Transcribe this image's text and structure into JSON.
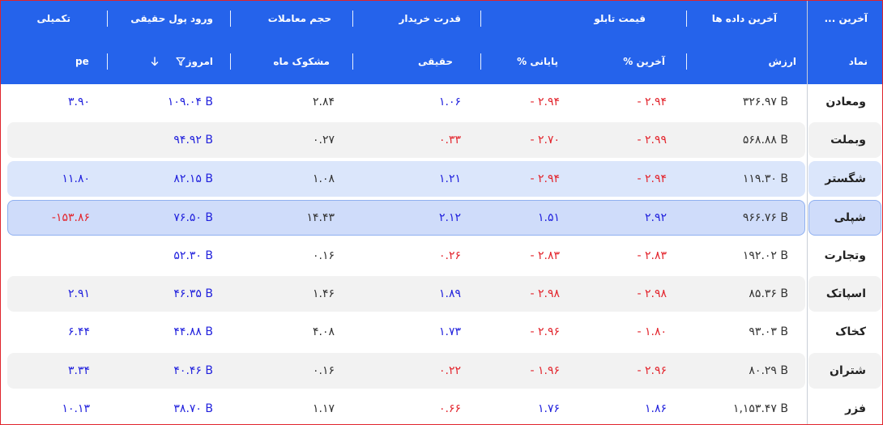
{
  "header": {
    "groups": {
      "latest_more": "آخرین ...",
      "latest_data": "آخرین داده ها",
      "board_price": "قیمت تابلو",
      "buyer_power": "قدرت خریدار",
      "trade_volume": "حجم معاملات",
      "real_money_inflow": "ورود پول حقیقی",
      "supplementary": "تکمیلی"
    },
    "columns": {
      "symbol": "نماد",
      "value": "ارزش",
      "last_pct": "آخرین %",
      "close_pct": "پایانی %",
      "real": "حقیقی",
      "suspicious_month": "مشکوک ماه",
      "today": "امروز",
      "pe": "pe"
    }
  },
  "rows": [
    {
      "symbol": "ومعادن",
      "value": "۳۲۶.۹۷ B",
      "last_pct": "- ۲.۹۴",
      "close_pct": "- ۲.۹۴",
      "real": "۱.۰۶",
      "suspicious_month": "۲.۸۴",
      "today": "۱۰۹.۰۴ B",
      "pe": "۳.۹۰",
      "styles": {
        "last": "red",
        "close": "red",
        "real": "blue",
        "pe": "blue"
      }
    },
    {
      "symbol": "وبملت",
      "value": "۵۶۸.۸۸ B",
      "last_pct": "- ۲.۹۹",
      "close_pct": "- ۲.۷۰",
      "real": "۰.۳۳",
      "suspicious_month": "۰.۲۷",
      "today": "۹۴.۹۲ B",
      "pe": "",
      "styles": {
        "last": "red",
        "close": "red",
        "real": "red",
        "pe": "blue"
      }
    },
    {
      "symbol": "شگستر",
      "value": "۱۱۹.۳۰ B",
      "last_pct": "- ۲.۹۴",
      "close_pct": "- ۲.۹۴",
      "real": "۱.۲۱",
      "suspicious_month": "۱.۰۸",
      "today": "۸۲.۱۵ B",
      "pe": "۱۱.۸۰",
      "styles": {
        "last": "red",
        "close": "red",
        "real": "blue",
        "pe": "blue"
      }
    },
    {
      "symbol": "شپلی",
      "value": "۹۶۶.۷۶ B",
      "last_pct": "۲.۹۲",
      "close_pct": "۱.۵۱",
      "real": "۲.۱۲",
      "suspicious_month": "۱۴.۴۳",
      "today": "۷۶.۵۰ B",
      "pe": "-۱۵۳.۸۶",
      "styles": {
        "last": "blue",
        "close": "blue",
        "real": "blue",
        "pe": "red"
      }
    },
    {
      "symbol": "وتجارت",
      "value": "۱۹۲.۰۲ B",
      "last_pct": "- ۲.۸۳",
      "close_pct": "- ۲.۸۳",
      "real": "۰.۲۶",
      "suspicious_month": "۰.۱۶",
      "today": "۵۲.۳۰ B",
      "pe": "",
      "styles": {
        "last": "red",
        "close": "red",
        "real": "red",
        "pe": "blue"
      }
    },
    {
      "symbol": "اسپاتک",
      "value": "۸۵.۳۶ B",
      "last_pct": "- ۲.۹۸",
      "close_pct": "- ۲.۹۸",
      "real": "۱.۸۹",
      "suspicious_month": "۱.۴۶",
      "today": "۴۶.۳۵ B",
      "pe": "۲.۹۱",
      "styles": {
        "last": "red",
        "close": "red",
        "real": "blue",
        "pe": "blue"
      }
    },
    {
      "symbol": "کخاک",
      "value": "۹۳.۰۳ B",
      "last_pct": "- ۱.۸۰",
      "close_pct": "- ۲.۹۶",
      "real": "۱.۷۳",
      "suspicious_month": "۴.۰۸",
      "today": "۴۴.۸۸ B",
      "pe": "۶.۴۴",
      "styles": {
        "last": "red",
        "close": "red",
        "real": "blue",
        "pe": "blue"
      }
    },
    {
      "symbol": "شتران",
      "value": "۸۰.۲۹ B",
      "last_pct": "- ۲.۹۶",
      "close_pct": "- ۱.۹۶",
      "real": "۰.۲۲",
      "suspicious_month": "۰.۱۶",
      "today": "۴۰.۴۶ B",
      "pe": "۳.۳۴",
      "styles": {
        "last": "red",
        "close": "red",
        "real": "red",
        "pe": "blue"
      }
    },
    {
      "symbol": "فزر",
      "value": "۱,۱۵۳.۴۷ B",
      "last_pct": "۱.۸۶",
      "close_pct": "۱.۷۶",
      "real": "۰.۶۶",
      "suspicious_month": "۱.۱۷",
      "today": "۳۸.۷۰ B",
      "pe": "۱۰.۱۳",
      "styles": {
        "last": "blue",
        "close": "blue",
        "real": "red",
        "pe": "blue"
      }
    }
  ],
  "colors": {
    "header_bg": "#2563eb",
    "row_alt": "#f2f2f2",
    "row_selected": "#dbe6fb",
    "row_active": "#cfdcfa",
    "up": "#2222dd",
    "down": "#e3262e"
  }
}
